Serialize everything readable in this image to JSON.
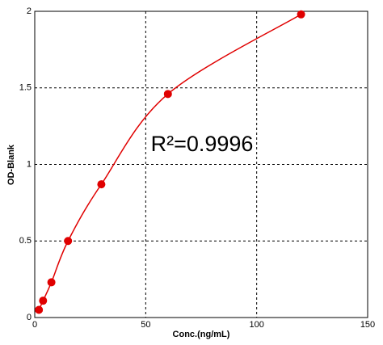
{
  "chart_data": {
    "type": "scatter",
    "annotation": "R²=0.9996",
    "x_label": "Conc.(ng/mL)",
    "y_label": "OD-Blank",
    "series": [
      {
        "color": "#e00000",
        "x": [
          1.875,
          3.75,
          7.5,
          15,
          30,
          60,
          120
        ],
        "values": [
          0.05,
          0.11,
          0.23,
          0.5,
          0.87,
          1.46,
          1.98
        ]
      }
    ],
    "fit_line": true,
    "xlim": [
      0,
      150
    ],
    "xticks": [
      0,
      50,
      100,
      150
    ],
    "ylim": [
      0,
      2
    ],
    "yticks": [
      0,
      {
        "value": 0.5,
        "label": "0.5"
      },
      1,
      {
        "value": 1.5,
        "label": "1.5"
      },
      2
    ],
    "grid": true
  }
}
